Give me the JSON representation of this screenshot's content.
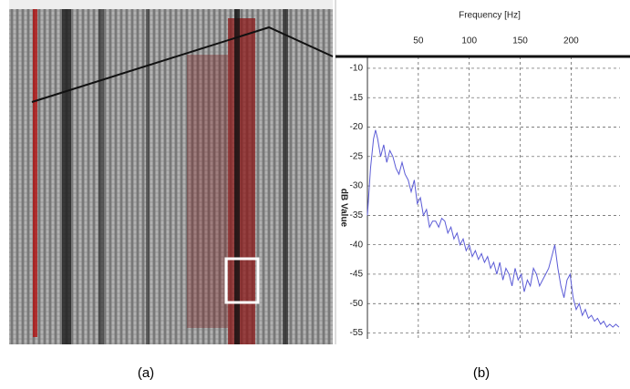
{
  "chart_data": {
    "type": "line",
    "title": "Frequency [Hz]",
    "y_label": "dB Value",
    "x": [
      0,
      3,
      6,
      8,
      10,
      13,
      16,
      19,
      22,
      25,
      28,
      31,
      34,
      37,
      40,
      43,
      46,
      49,
      52,
      55,
      58,
      61,
      64,
      67,
      70,
      73,
      76,
      79,
      82,
      85,
      88,
      91,
      94,
      97,
      100,
      103,
      106,
      109,
      112,
      115,
      118,
      121,
      124,
      127,
      130,
      133,
      136,
      139,
      142,
      145,
      148,
      151,
      154,
      157,
      160,
      163,
      166,
      169,
      172,
      175,
      178,
      181,
      184,
      187,
      190,
      193,
      196,
      199,
      202,
      205,
      208,
      211,
      214,
      217,
      220,
      223,
      226,
      229,
      232,
      235,
      238,
      241,
      244,
      247
    ],
    "values": [
      -35,
      -27,
      -22,
      -20.5,
      -22,
      -25,
      -23,
      -26,
      -24,
      -25,
      -27,
      -28,
      -26,
      -28,
      -29,
      -31,
      -29,
      -33,
      -32,
      -35,
      -34,
      -37,
      -36,
      -36,
      -37,
      -35.5,
      -36,
      -38,
      -37,
      -39,
      -38,
      -40,
      -39,
      -41,
      -40,
      -42,
      -41,
      -42.5,
      -41.5,
      -43,
      -42,
      -44,
      -43,
      -45,
      -43,
      -46,
      -44,
      -45,
      -47,
      -44,
      -46,
      -45,
      -48,
      -46,
      -47,
      -44,
      -45,
      -47,
      -46,
      -45,
      -44,
      -42,
      -40,
      -44,
      -47,
      -49,
      -46,
      -45,
      -49,
      -51,
      -50,
      -52,
      -51,
      -52.5,
      -52,
      -53,
      -52.5,
      -53.5,
      -53,
      -54,
      -53.5,
      -54,
      -53.5,
      -54
    ],
    "color": "#5b5bd6",
    "xlim": [
      0,
      248
    ],
    "ylim": [
      -56,
      -8
    ],
    "xticks": [
      50,
      100,
      150,
      200
    ],
    "yticks": [
      -10,
      -15,
      -20,
      -25,
      -30,
      -35,
      -40,
      -45,
      -50,
      -55
    ],
    "grid": true
  },
  "panels": [
    {
      "label": "(a)"
    },
    {
      "label": "(b)"
    }
  ]
}
